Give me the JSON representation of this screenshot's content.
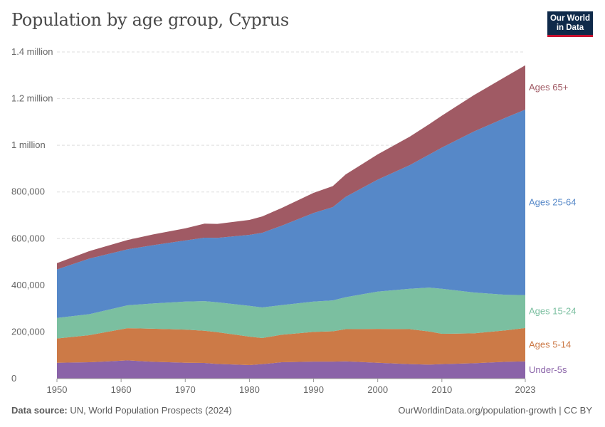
{
  "title": "Population by age group, Cyprus",
  "logo": {
    "line1": "Our World",
    "line2": "in Data"
  },
  "footer": {
    "source_label": "Data source:",
    "source_text": "UN, World Population Prospects (2024)",
    "right_text": "OurWorldinData.org/population-growth | CC BY"
  },
  "colors": {
    "under5": "#8a63a8",
    "ages5_14": "#cc7a47",
    "ages15_24": "#7bbfa0",
    "ages25_64": "#5688c8",
    "ages65": "#a05a64"
  },
  "chart_data": {
    "type": "area",
    "stacked": true,
    "title": "Population by age group, Cyprus",
    "x": [
      1950,
      1955,
      1961,
      1965,
      1970,
      1973,
      1975,
      1980,
      1982,
      1985,
      1990,
      1993,
      1995,
      2000,
      2005,
      2008,
      2010,
      2015,
      2020,
      2023
    ],
    "xticks": [
      "1950",
      "1960",
      "1970",
      "1980",
      "1990",
      "2000",
      "2010",
      "2023"
    ],
    "yticks": [
      "0",
      "200,000",
      "400,000",
      "600,000",
      "800,000",
      "1 million",
      "1.2 million",
      "1.4 million"
    ],
    "ylim": [
      0,
      1400000
    ],
    "grid": true,
    "series": [
      {
        "name": "Under-5s",
        "key": "under5",
        "values": [
          68000,
          70000,
          78000,
          72000,
          68000,
          67000,
          63000,
          58000,
          62000,
          70000,
          73000,
          73000,
          74000,
          68000,
          62000,
          60000,
          62000,
          66000,
          72000,
          74000
        ]
      },
      {
        "name": "Ages 5-14",
        "key": "ages5_14",
        "values": [
          104000,
          116000,
          138000,
          142000,
          142000,
          138000,
          136000,
          122000,
          112000,
          118000,
          127000,
          130000,
          138000,
          145000,
          150000,
          142000,
          130000,
          128000,
          135000,
          143000
        ]
      },
      {
        "name": "Ages 15-24",
        "key": "ages15_24",
        "values": [
          88000,
          90000,
          98000,
          108000,
          120000,
          127000,
          128000,
          132000,
          131000,
          127000,
          130000,
          132000,
          137000,
          160000,
          173000,
          188000,
          193000,
          175000,
          152000,
          141000
        ]
      },
      {
        "name": "Ages 25-64",
        "key": "ages25_64",
        "values": [
          208000,
          238000,
          240000,
          250000,
          262000,
          272000,
          276000,
          304000,
          320000,
          340000,
          380000,
          400000,
          430000,
          480000,
          530000,
          570000,
          605000,
          690000,
          760000,
          795000
        ]
      },
      {
        "name": "Ages 65+",
        "key": "ages65",
        "values": [
          27000,
          32000,
          40000,
          46000,
          52000,
          60000,
          60000,
          64000,
          70000,
          76000,
          86000,
          90000,
          96000,
          108000,
          122000,
          130000,
          137000,
          156000,
          176000,
          190000
        ]
      }
    ]
  }
}
